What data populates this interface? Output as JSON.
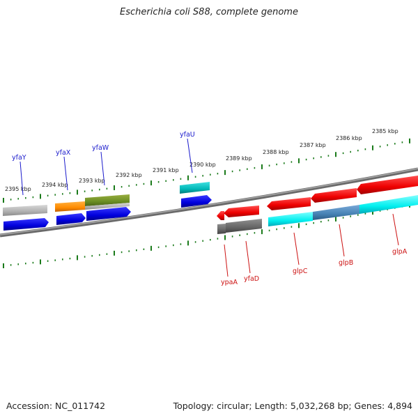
{
  "title": "Escherichia coli S88, complete genome",
  "footer": {
    "accession": "Accession: NC_011742",
    "summary": "Topology: circular; Length: 5,032,268 bp; Genes: 4,894"
  },
  "colors": {
    "backbone": "#808080",
    "tick": "#1a7a1a",
    "top_label": "#1a1acc",
    "bottom_label": "#cc1111"
  },
  "scale_labels": [
    "2395 kbp",
    "2394 kbp",
    "2393 kbp",
    "2392 kbp",
    "2391 kbp",
    "2390 kbp",
    "2389 kbp",
    "2388 kbp",
    "2387 kbp",
    "2386 kbp",
    "2385 kbp"
  ],
  "top_genes": [
    {
      "name": "yfaY",
      "color": "#1a1acc"
    },
    {
      "name": "yfaX",
      "color": "#1a1acc"
    },
    {
      "name": "yfaW",
      "color": "#1a1acc"
    },
    {
      "name": "yfaU",
      "color": "#1a1acc"
    }
  ],
  "bottom_genes": [
    {
      "name": "ypaA",
      "color": "#cc1111"
    },
    {
      "name": "yfaD",
      "color": "#cc1111"
    },
    {
      "name": "glpC",
      "color": "#cc1111"
    },
    {
      "name": "glpB",
      "color": "#cc1111"
    },
    {
      "name": "glpA",
      "color": "#cc1111"
    }
  ]
}
